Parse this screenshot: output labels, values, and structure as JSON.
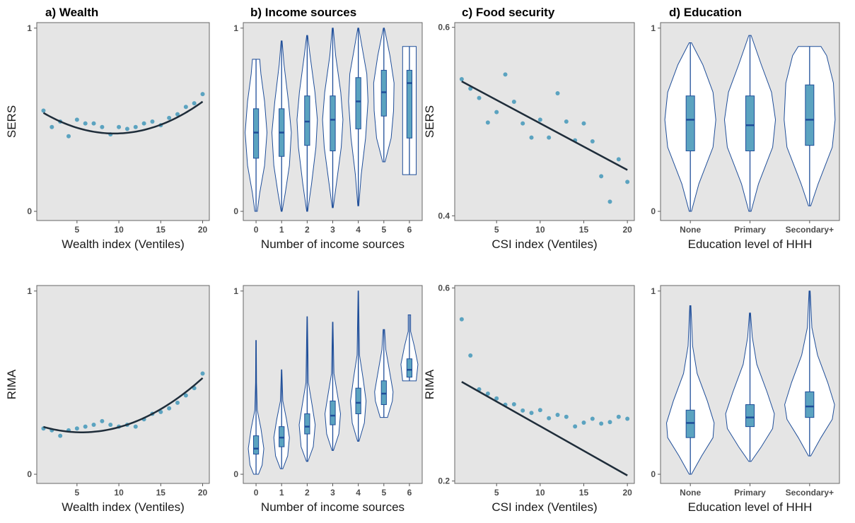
{
  "colors": {
    "panel_background": "#e5e5e5",
    "point": "#5ba3c0",
    "fit_line": "#1f2d3a",
    "violin_outline": "#1f4e99",
    "violin_fill": "#ffffff",
    "box_fill": "#5ba3c0",
    "median": "#1f4e99"
  },
  "column_titles": [
    "a) Wealth",
    "b) Income sources",
    "c) Food security",
    "d) Education"
  ],
  "chart_data": [
    {
      "id": "a-sers",
      "type": "scatter",
      "title": "a) Wealth",
      "xlabel": "Wealth index (Ventiles)",
      "ylabel": "SERS",
      "xlim": [
        0.2,
        20.8
      ],
      "ylim": [
        -0.05,
        1.03
      ],
      "xticks": [
        5,
        10,
        15,
        20
      ],
      "yticks": [
        0,
        1
      ],
      "points": {
        "x": [
          1,
          2,
          3,
          4,
          5,
          6,
          7,
          8,
          9,
          10,
          11,
          12,
          13,
          14,
          15,
          16,
          17,
          18,
          19,
          20
        ],
        "y": [
          0.55,
          0.46,
          0.49,
          0.41,
          0.5,
          0.48,
          0.48,
          0.46,
          0.42,
          0.46,
          0.45,
          0.46,
          0.48,
          0.49,
          0.47,
          0.51,
          0.53,
          0.57,
          0.59,
          0.64
        ]
      },
      "fit": {
        "kind": "quadratic",
        "x": [
          1,
          20
        ],
        "coef": [
          0.5655,
          -0.0297,
          0.001568
        ]
      }
    },
    {
      "id": "b-sers",
      "type": "violin",
      "xlabel": "Number of income sources",
      "ylabel": "",
      "ylim": [
        -0.05,
        1.03
      ],
      "categories": [
        "0",
        "1",
        "2",
        "3",
        "4",
        "5",
        "6"
      ],
      "yticks": [
        0,
        1
      ],
      "violins": [
        {
          "min": 0.0,
          "max": 0.83,
          "q1": 0.29,
          "median": 0.43,
          "q3": 0.56,
          "profile": [
            [
              0,
              0.05
            ],
            [
              0.1,
              0.15
            ],
            [
              0.25,
              0.35
            ],
            [
              0.43,
              0.45
            ],
            [
              0.6,
              0.35
            ],
            [
              0.75,
              0.2
            ],
            [
              0.83,
              0.15
            ]
          ]
        },
        {
          "min": 0.0,
          "max": 0.93,
          "q1": 0.3,
          "median": 0.43,
          "q3": 0.56,
          "profile": [
            [
              0,
              0.02
            ],
            [
              0.1,
              0.15
            ],
            [
              0.25,
              0.32
            ],
            [
              0.43,
              0.4
            ],
            [
              0.6,
              0.28
            ],
            [
              0.8,
              0.1
            ],
            [
              0.93,
              0.02
            ]
          ]
        },
        {
          "min": 0.0,
          "max": 0.96,
          "q1": 0.36,
          "median": 0.49,
          "q3": 0.63,
          "profile": [
            [
              0,
              0.02
            ],
            [
              0.15,
              0.18
            ],
            [
              0.35,
              0.36
            ],
            [
              0.5,
              0.42
            ],
            [
              0.65,
              0.32
            ],
            [
              0.85,
              0.12
            ],
            [
              0.96,
              0.02
            ]
          ]
        },
        {
          "min": 0.02,
          "max": 1.0,
          "q1": 0.33,
          "median": 0.5,
          "q3": 0.63,
          "profile": [
            [
              0.02,
              0.02
            ],
            [
              0.15,
              0.15
            ],
            [
              0.35,
              0.35
            ],
            [
              0.5,
              0.42
            ],
            [
              0.65,
              0.33
            ],
            [
              0.85,
              0.12
            ],
            [
              1.0,
              0.02
            ]
          ]
        },
        {
          "min": 0.03,
          "max": 1.0,
          "q1": 0.45,
          "median": 0.6,
          "q3": 0.73,
          "profile": [
            [
              0.03,
              0.02
            ],
            [
              0.2,
              0.12
            ],
            [
              0.4,
              0.3
            ],
            [
              0.6,
              0.4
            ],
            [
              0.75,
              0.35
            ],
            [
              0.9,
              0.15
            ],
            [
              1.0,
              0.02
            ]
          ]
        },
        {
          "min": 0.27,
          "max": 1.0,
          "q1": 0.52,
          "median": 0.65,
          "q3": 0.77,
          "profile": [
            [
              0.27,
              0.05
            ],
            [
              0.4,
              0.3
            ],
            [
              0.55,
              0.4
            ],
            [
              0.7,
              0.42
            ],
            [
              0.85,
              0.25
            ],
            [
              1.0,
              0.02
            ]
          ]
        },
        {
          "min": 0.2,
          "max": 0.9,
          "q1": 0.4,
          "median": 0.7,
          "q3": 0.77,
          "profile": [
            [
              0.2,
              0.28
            ],
            [
              0.9,
              0.28
            ]
          ]
        }
      ]
    },
    {
      "id": "c-sers",
      "type": "scatter",
      "title": "c) Food security",
      "xlabel": "CSI index (Ventiles)",
      "ylabel": "SERS",
      "xlim": [
        0.2,
        20.8
      ],
      "ylim": [
        0.395,
        0.605
      ],
      "xticks": [
        5,
        10,
        15,
        20
      ],
      "yticks": [
        0.4,
        0.6
      ],
      "points": {
        "x": [
          1,
          2,
          3,
          4,
          5,
          6,
          7,
          8,
          9,
          10,
          11,
          12,
          13,
          14,
          15,
          16,
          17,
          18,
          19,
          20
        ],
        "y": [
          0.545,
          0.535,
          0.525,
          0.499,
          0.51,
          0.55,
          0.521,
          0.498,
          0.483,
          0.502,
          0.483,
          0.53,
          0.5,
          0.48,
          0.498,
          0.479,
          0.442,
          0.415,
          0.46,
          0.436
        ]
      },
      "fit": {
        "kind": "linear",
        "x": [
          1,
          20
        ],
        "coef": [
          0.5476,
          -0.00495
        ]
      }
    },
    {
      "id": "d-sers",
      "type": "violin",
      "xlabel": "Education level of HHH",
      "ylabel": "",
      "ylim": [
        -0.05,
        1.03
      ],
      "categories": [
        "None",
        "Primary",
        "Secondary+"
      ],
      "yticks": [
        0,
        1
      ],
      "violins": [
        {
          "min": 0.0,
          "max": 0.92,
          "q1": 0.33,
          "median": 0.5,
          "q3": 0.63,
          "profile": [
            [
              0,
              0.02
            ],
            [
              0.15,
              0.15
            ],
            [
              0.35,
              0.4
            ],
            [
              0.5,
              0.45
            ],
            [
              0.65,
              0.4
            ],
            [
              0.8,
              0.22
            ],
            [
              0.92,
              0.02
            ]
          ]
        },
        {
          "min": 0.0,
          "max": 0.96,
          "q1": 0.33,
          "median": 0.47,
          "q3": 0.63,
          "profile": [
            [
              0,
              0.02
            ],
            [
              0.15,
              0.15
            ],
            [
              0.35,
              0.4
            ],
            [
              0.5,
              0.45
            ],
            [
              0.65,
              0.38
            ],
            [
              0.8,
              0.2
            ],
            [
              0.96,
              0.02
            ]
          ]
        },
        {
          "min": 0.03,
          "max": 0.9,
          "q1": 0.36,
          "median": 0.5,
          "q3": 0.69,
          "profile": [
            [
              0.03,
              0.02
            ],
            [
              0.15,
              0.15
            ],
            [
              0.35,
              0.4
            ],
            [
              0.5,
              0.45
            ],
            [
              0.7,
              0.42
            ],
            [
              0.85,
              0.3
            ],
            [
              0.9,
              0.2
            ]
          ]
        }
      ]
    },
    {
      "id": "a-rima",
      "type": "scatter",
      "xlabel": "Wealth index (Ventiles)",
      "ylabel": "RIMA",
      "xlim": [
        0.2,
        20.8
      ],
      "ylim": [
        -0.05,
        1.03
      ],
      "xticks": [
        5,
        10,
        15,
        20
      ],
      "yticks": [
        0,
        1
      ],
      "points": {
        "x": [
          1,
          2,
          3,
          4,
          5,
          6,
          7,
          8,
          9,
          10,
          11,
          12,
          13,
          14,
          15,
          16,
          17,
          18,
          19,
          20
        ],
        "y": [
          0.25,
          0.24,
          0.21,
          0.24,
          0.25,
          0.26,
          0.27,
          0.29,
          0.27,
          0.26,
          0.27,
          0.26,
          0.3,
          0.33,
          0.34,
          0.36,
          0.39,
          0.43,
          0.47,
          0.55
        ]
      },
      "fit": {
        "kind": "quadratic",
        "x": [
          1,
          20
        ],
        "coef": [
          0.273,
          -0.01585,
          0.001423
        ]
      }
    },
    {
      "id": "b-rima",
      "type": "violin",
      "xlabel": "Number of income sources",
      "ylabel": "",
      "ylim": [
        -0.05,
        1.03
      ],
      "categories": [
        "0",
        "1",
        "2",
        "3",
        "4",
        "5",
        "6"
      ],
      "yticks": [
        0,
        1
      ],
      "violins": [
        {
          "min": 0.0,
          "max": 0.73,
          "q1": 0.11,
          "median": 0.14,
          "q3": 0.21,
          "profile": [
            [
              0,
              0.1
            ],
            [
              0.05,
              0.25
            ],
            [
              0.14,
              0.32
            ],
            [
              0.25,
              0.2
            ],
            [
              0.35,
              0.05
            ],
            [
              0.5,
              0.02
            ],
            [
              0.73,
              0.01
            ]
          ]
        },
        {
          "min": 0.03,
          "max": 0.57,
          "q1": 0.15,
          "median": 0.2,
          "q3": 0.26,
          "profile": [
            [
              0.03,
              0.05
            ],
            [
              0.1,
              0.25
            ],
            [
              0.2,
              0.32
            ],
            [
              0.3,
              0.2
            ],
            [
              0.4,
              0.05
            ],
            [
              0.57,
              0.01
            ]
          ]
        },
        {
          "min": 0.07,
          "max": 0.86,
          "q1": 0.22,
          "median": 0.26,
          "q3": 0.33,
          "profile": [
            [
              0.07,
              0.03
            ],
            [
              0.15,
              0.25
            ],
            [
              0.27,
              0.33
            ],
            [
              0.38,
              0.2
            ],
            [
              0.5,
              0.05
            ],
            [
              0.86,
              0.01
            ]
          ]
        },
        {
          "min": 0.13,
          "max": 0.83,
          "q1": 0.27,
          "median": 0.32,
          "q3": 0.4,
          "profile": [
            [
              0.13,
              0.03
            ],
            [
              0.22,
              0.25
            ],
            [
              0.33,
              0.32
            ],
            [
              0.43,
              0.2
            ],
            [
              0.55,
              0.05
            ],
            [
              0.83,
              0.01
            ]
          ]
        },
        {
          "min": 0.18,
          "max": 1.0,
          "q1": 0.33,
          "median": 0.39,
          "q3": 0.47,
          "profile": [
            [
              0.18,
              0.03
            ],
            [
              0.28,
              0.25
            ],
            [
              0.4,
              0.32
            ],
            [
              0.52,
              0.2
            ],
            [
              0.65,
              0.05
            ],
            [
              1.0,
              0.01
            ]
          ]
        },
        {
          "min": 0.31,
          "max": 0.79,
          "q1": 0.38,
          "median": 0.44,
          "q3": 0.51,
          "profile": [
            [
              0.31,
              0.15
            ],
            [
              0.4,
              0.35
            ],
            [
              0.45,
              0.38
            ],
            [
              0.55,
              0.25
            ],
            [
              0.68,
              0.08
            ],
            [
              0.79,
              0.03
            ]
          ]
        },
        {
          "min": 0.51,
          "max": 0.87,
          "q1": 0.53,
          "median": 0.57,
          "q3": 0.63,
          "profile": [
            [
              0.51,
              0.28
            ],
            [
              0.6,
              0.35
            ],
            [
              0.7,
              0.2
            ],
            [
              0.78,
              0.05
            ],
            [
              0.87,
              0.05
            ]
          ]
        }
      ]
    },
    {
      "id": "c-rima",
      "type": "scatter",
      "xlabel": "CSI index (Ventiles)",
      "ylabel": "RIMA",
      "xlim": [
        0.2,
        20.8
      ],
      "ylim": [
        0.195,
        0.605
      ],
      "xticks": [
        5,
        10,
        15,
        20
      ],
      "yticks": [
        0.2,
        0.6
      ],
      "points": {
        "x": [
          1,
          2,
          3,
          4,
          5,
          6,
          7,
          8,
          9,
          10,
          11,
          12,
          13,
          14,
          15,
          16,
          17,
          18,
          19,
          20
        ],
        "y": [
          0.535,
          0.46,
          0.39,
          0.381,
          0.371,
          0.358,
          0.359,
          0.346,
          0.341,
          0.347,
          0.33,
          0.337,
          0.333,
          0.313,
          0.321,
          0.329,
          0.319,
          0.322,
          0.333,
          0.329
        ]
      },
      "fit": {
        "kind": "linear",
        "x": [
          1,
          20
        ],
        "coef": [
          0.4157,
          -0.01021
        ]
      }
    },
    {
      "id": "d-rima",
      "type": "violin",
      "xlabel": "Education level of HHH",
      "ylabel": "",
      "ylim": [
        -0.05,
        1.03
      ],
      "categories": [
        "None",
        "Primary",
        "Secondary+"
      ],
      "yticks": [
        0,
        1
      ],
      "violins": [
        {
          "min": 0.0,
          "max": 0.92,
          "q1": 0.2,
          "median": 0.28,
          "q3": 0.35,
          "profile": [
            [
              0,
              0.02
            ],
            [
              0.1,
              0.2
            ],
            [
              0.2,
              0.4
            ],
            [
              0.28,
              0.42
            ],
            [
              0.4,
              0.3
            ],
            [
              0.55,
              0.12
            ],
            [
              0.7,
              0.04
            ],
            [
              0.92,
              0.01
            ]
          ]
        },
        {
          "min": 0.07,
          "max": 0.88,
          "q1": 0.26,
          "median": 0.31,
          "q3": 0.38,
          "profile": [
            [
              0.07,
              0.02
            ],
            [
              0.15,
              0.2
            ],
            [
              0.25,
              0.4
            ],
            [
              0.33,
              0.43
            ],
            [
              0.45,
              0.3
            ],
            [
              0.6,
              0.12
            ],
            [
              0.75,
              0.04
            ],
            [
              0.88,
              0.01
            ]
          ]
        },
        {
          "min": 0.1,
          "max": 1.0,
          "q1": 0.31,
          "median": 0.37,
          "q3": 0.45,
          "profile": [
            [
              0.1,
              0.02
            ],
            [
              0.2,
              0.2
            ],
            [
              0.3,
              0.4
            ],
            [
              0.38,
              0.44
            ],
            [
              0.5,
              0.32
            ],
            [
              0.65,
              0.14
            ],
            [
              0.8,
              0.04
            ],
            [
              1.0,
              0.01
            ]
          ]
        }
      ]
    }
  ]
}
